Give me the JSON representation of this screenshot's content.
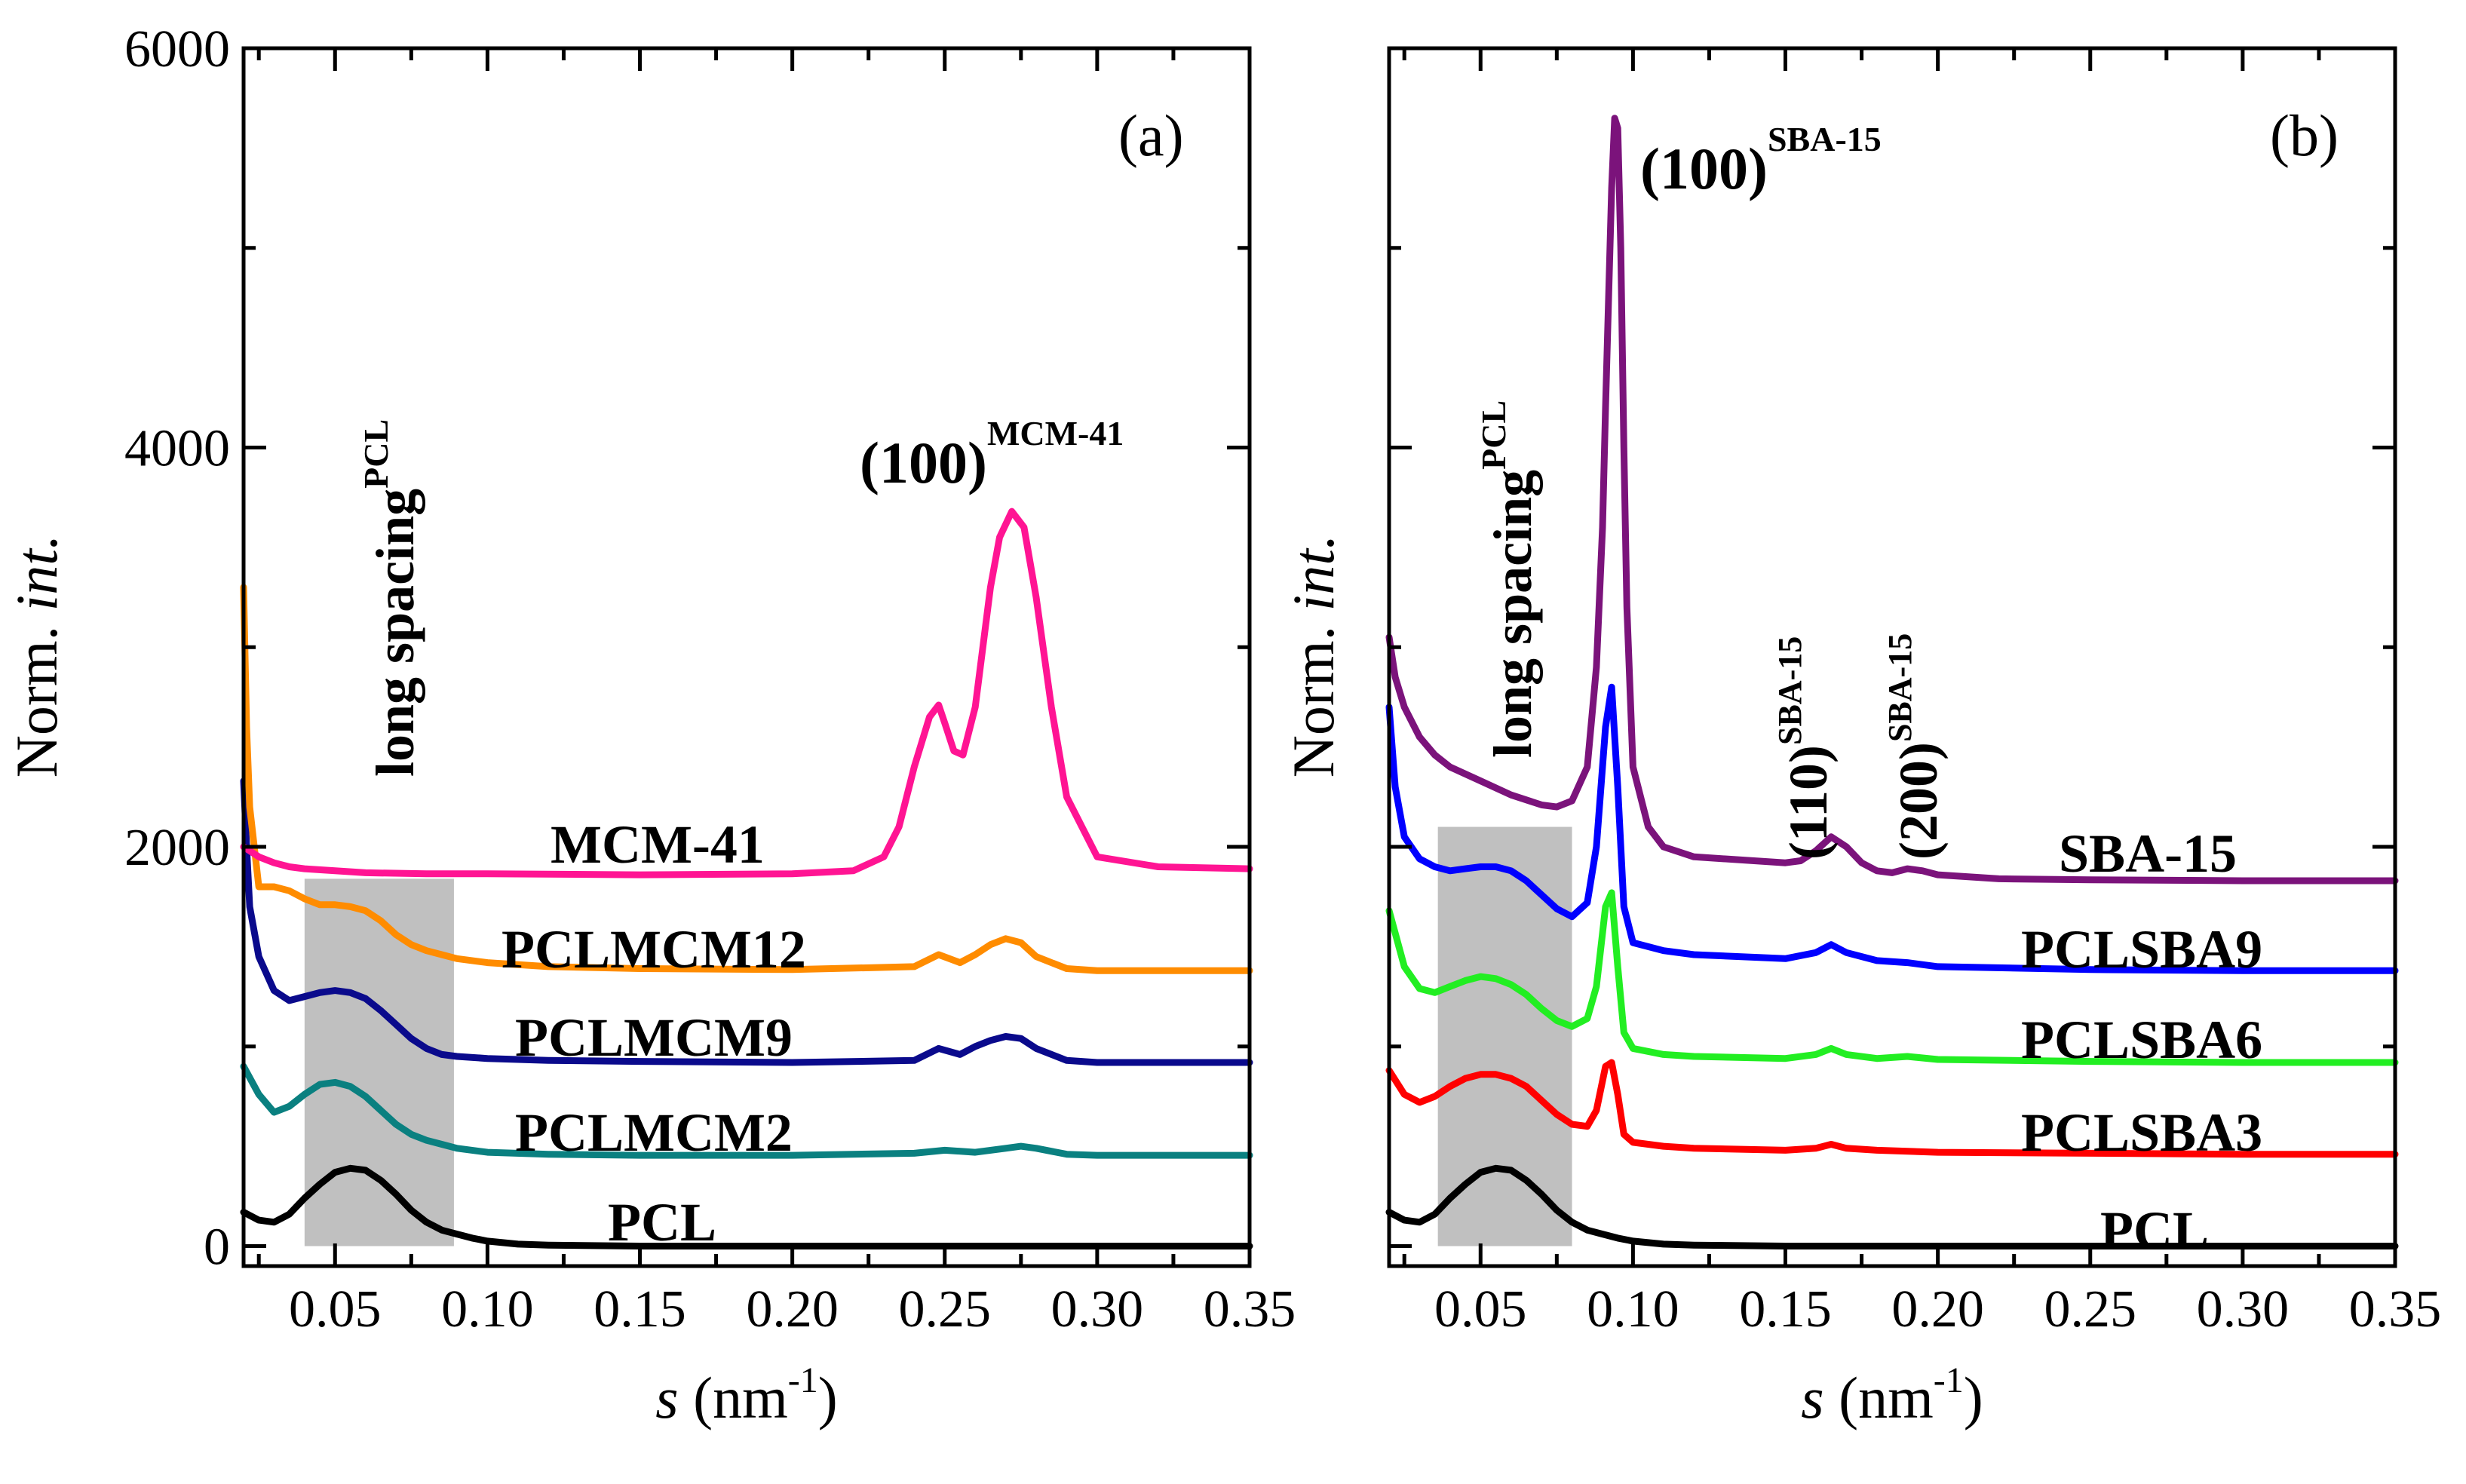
{
  "chart_data": [
    {
      "type": "line",
      "panel": "(a)",
      "xlabel": "s (nm-1)",
      "xlabel_parts": {
        "var": "s",
        "unit": "(nm",
        "exp": "-1",
        "close": ")"
      },
      "ylabel_parts": {
        "text": "Norm. ",
        "italic": "int."
      },
      "xlim": [
        0.02,
        0.35
      ],
      "ylim": [
        -100,
        6000
      ],
      "xticks": [
        0.05,
        0.1,
        0.15,
        0.2,
        0.25,
        0.3,
        0.35
      ],
      "xtick_labels": [
        "0.05",
        "0.10",
        "0.15",
        "0.20",
        "0.25",
        "0.30",
        "0.35"
      ],
      "yticks": [
        0,
        2000,
        4000,
        6000
      ],
      "ytick_labels": [
        "0",
        "2000",
        "4000",
        "6000"
      ],
      "shaded_band": {
        "x": [
          0.04,
          0.089
        ],
        "y": [
          0,
          1840
        ]
      },
      "annotations": [
        {
          "text": "long spacing",
          "sup": "PCL",
          "rotated": true
        },
        {
          "text": "(100)",
          "sup": "MCM-41"
        }
      ],
      "series": [
        {
          "name": "PCL",
          "color": "#000000",
          "x": [
            0.02,
            0.025,
            0.03,
            0.035,
            0.04,
            0.045,
            0.05,
            0.055,
            0.06,
            0.065,
            0.07,
            0.075,
            0.08,
            0.085,
            0.09,
            0.095,
            0.1,
            0.11,
            0.12,
            0.15,
            0.2,
            0.25,
            0.3,
            0.35
          ],
          "y": [
            170,
            130,
            120,
            160,
            240,
            310,
            370,
            390,
            380,
            330,
            260,
            180,
            120,
            80,
            60,
            40,
            25,
            10,
            5,
            0,
            0,
            0,
            0,
            0
          ]
        },
        {
          "name": "PCLMCM2",
          "color": "#0a8080",
          "x": [
            0.02,
            0.025,
            0.03,
            0.035,
            0.04,
            0.045,
            0.05,
            0.055,
            0.06,
            0.065,
            0.07,
            0.075,
            0.08,
            0.085,
            0.09,
            0.1,
            0.12,
            0.15,
            0.2,
            0.24,
            0.25,
            0.26,
            0.27,
            0.275,
            0.28,
            0.29,
            0.3,
            0.35
          ],
          "y": [
            900,
            760,
            670,
            700,
            760,
            810,
            820,
            800,
            750,
            680,
            610,
            560,
            530,
            510,
            490,
            470,
            460,
            455,
            455,
            465,
            480,
            470,
            490,
            500,
            490,
            460,
            455,
            455
          ]
        },
        {
          "name": "PCLMCM9",
          "color": "#0a0a8c",
          "x": [
            0.02,
            0.021,
            0.022,
            0.025,
            0.03,
            0.035,
            0.04,
            0.045,
            0.05,
            0.055,
            0.06,
            0.065,
            0.07,
            0.075,
            0.08,
            0.085,
            0.09,
            0.1,
            0.12,
            0.15,
            0.2,
            0.24,
            0.248,
            0.255,
            0.26,
            0.265,
            0.27,
            0.275,
            0.28,
            0.29,
            0.3,
            0.35
          ],
          "y": [
            2330,
            2000,
            1700,
            1450,
            1280,
            1230,
            1250,
            1270,
            1280,
            1270,
            1240,
            1180,
            1110,
            1040,
            990,
            960,
            950,
            940,
            930,
            925,
            920,
            930,
            990,
            960,
            1000,
            1030,
            1050,
            1040,
            990,
            930,
            920,
            920
          ]
        },
        {
          "name": "PCLMCM12",
          "color": "#ff8c00",
          "x": [
            0.02,
            0.021,
            0.022,
            0.025,
            0.03,
            0.035,
            0.04,
            0.045,
            0.05,
            0.055,
            0.06,
            0.065,
            0.07,
            0.075,
            0.08,
            0.085,
            0.09,
            0.1,
            0.12,
            0.15,
            0.2,
            0.24,
            0.248,
            0.255,
            0.26,
            0.265,
            0.27,
            0.275,
            0.28,
            0.29,
            0.3,
            0.35
          ],
          "y": [
            3300,
            2600,
            2200,
            1800,
            1800,
            1780,
            1740,
            1710,
            1710,
            1700,
            1680,
            1630,
            1560,
            1510,
            1480,
            1460,
            1440,
            1420,
            1400,
            1390,
            1385,
            1400,
            1460,
            1420,
            1460,
            1510,
            1540,
            1520,
            1450,
            1390,
            1380,
            1380
          ]
        },
        {
          "name": "MCM-41",
          "color": "#ff1493",
          "x": [
            0.02,
            0.025,
            0.03,
            0.035,
            0.04,
            0.05,
            0.06,
            0.08,
            0.1,
            0.15,
            0.2,
            0.22,
            0.23,
            0.235,
            0.24,
            0.245,
            0.248,
            0.25,
            0.253,
            0.256,
            0.26,
            0.265,
            0.268,
            0.272,
            0.276,
            0.28,
            0.285,
            0.29,
            0.3,
            0.32,
            0.35
          ],
          "y": [
            2000,
            1950,
            1920,
            1900,
            1890,
            1880,
            1870,
            1865,
            1865,
            1860,
            1865,
            1880,
            1950,
            2100,
            2400,
            2650,
            2710,
            2620,
            2480,
            2460,
            2700,
            3300,
            3550,
            3680,
            3600,
            3250,
            2700,
            2250,
            1950,
            1900,
            1890
          ]
        }
      ],
      "labels": [
        "MCM-41",
        "PCLMCM12",
        "PCLMCM9",
        "PCLMCM2",
        "PCL"
      ]
    },
    {
      "type": "line",
      "panel": "(b)",
      "xlabel": "s (nm-1)",
      "xlabel_parts": {
        "var": "s",
        "unit": "(nm",
        "exp": "-1",
        "close": ")"
      },
      "ylabel_parts": {
        "text": "Norm. ",
        "italic": "int."
      },
      "xlim": [
        0.02,
        0.35
      ],
      "ylim": [
        -100,
        6000
      ],
      "xticks": [
        0.05,
        0.1,
        0.15,
        0.2,
        0.25,
        0.3,
        0.35
      ],
      "xtick_labels": [
        "0.05",
        "0.10",
        "0.15",
        "0.20",
        "0.25",
        "0.30",
        "0.35"
      ],
      "yticks": [
        0,
        2000,
        4000,
        6000
      ],
      "shaded_band": {
        "x": [
          0.036,
          0.08
        ],
        "y": [
          0,
          2100
        ]
      },
      "annotations": [
        {
          "text": "long spacing",
          "sup": "PCL",
          "rotated": true
        },
        {
          "text": "(100)",
          "sup": "SBA-15"
        },
        {
          "text": "(110)",
          "sup": "SBA-15",
          "rotated": true
        },
        {
          "text": "(200)",
          "sup": "SBA-15",
          "rotated": true
        }
      ],
      "series": [
        {
          "name": "PCL",
          "color": "#000000",
          "x": [
            0.02,
            0.025,
            0.03,
            0.035,
            0.04,
            0.045,
            0.05,
            0.055,
            0.06,
            0.065,
            0.07,
            0.075,
            0.08,
            0.085,
            0.09,
            0.095,
            0.1,
            0.11,
            0.12,
            0.15,
            0.2,
            0.25,
            0.3,
            0.35
          ],
          "y": [
            170,
            130,
            120,
            160,
            240,
            310,
            370,
            390,
            380,
            330,
            260,
            180,
            120,
            80,
            60,
            40,
            25,
            10,
            5,
            0,
            0,
            0,
            0,
            0
          ]
        },
        {
          "name": "PCLSBA3",
          "color": "#ff0000",
          "x": [
            0.02,
            0.025,
            0.03,
            0.035,
            0.04,
            0.045,
            0.05,
            0.055,
            0.06,
            0.065,
            0.07,
            0.075,
            0.08,
            0.085,
            0.088,
            0.091,
            0.093,
            0.095,
            0.097,
            0.1,
            0.11,
            0.12,
            0.15,
            0.16,
            0.165,
            0.17,
            0.18,
            0.2,
            0.25,
            0.3,
            0.35
          ],
          "y": [
            880,
            760,
            720,
            750,
            800,
            840,
            860,
            860,
            840,
            800,
            730,
            660,
            610,
            600,
            680,
            900,
            920,
            760,
            560,
            520,
            500,
            490,
            480,
            490,
            510,
            490,
            480,
            470,
            465,
            460,
            460
          ]
        },
        {
          "name": "PCLSBA6",
          "color": "#22ee22",
          "x": [
            0.02,
            0.025,
            0.03,
            0.035,
            0.04,
            0.045,
            0.05,
            0.055,
            0.06,
            0.065,
            0.07,
            0.075,
            0.08,
            0.085,
            0.088,
            0.091,
            0.093,
            0.095,
            0.097,
            0.1,
            0.11,
            0.12,
            0.15,
            0.16,
            0.165,
            0.17,
            0.18,
            0.19,
            0.2,
            0.25,
            0.3,
            0.35
          ],
          "y": [
            1680,
            1400,
            1290,
            1270,
            1300,
            1330,
            1350,
            1340,
            1310,
            1260,
            1190,
            1130,
            1100,
            1140,
            1300,
            1700,
            1770,
            1400,
            1070,
            990,
            960,
            950,
            940,
            960,
            990,
            960,
            940,
            950,
            935,
            925,
            920,
            920
          ]
        },
        {
          "name": "PCLSBA9",
          "color": "#0000ff",
          "x": [
            0.02,
            0.022,
            0.025,
            0.03,
            0.035,
            0.04,
            0.045,
            0.05,
            0.055,
            0.06,
            0.065,
            0.07,
            0.075,
            0.08,
            0.085,
            0.088,
            0.091,
            0.093,
            0.095,
            0.097,
            0.1,
            0.11,
            0.12,
            0.15,
            0.16,
            0.165,
            0.17,
            0.18,
            0.19,
            0.2,
            0.25,
            0.3,
            0.35
          ],
          "y": [
            2700,
            2300,
            2050,
            1940,
            1900,
            1880,
            1890,
            1900,
            1900,
            1880,
            1830,
            1760,
            1690,
            1650,
            1720,
            2000,
            2600,
            2800,
            2300,
            1700,
            1520,
            1480,
            1460,
            1440,
            1470,
            1510,
            1470,
            1430,
            1420,
            1400,
            1385,
            1380,
            1380
          ]
        },
        {
          "name": "SBA-15",
          "color": "#7b137b",
          "x": [
            0.02,
            0.022,
            0.025,
            0.03,
            0.035,
            0.04,
            0.05,
            0.06,
            0.07,
            0.075,
            0.08,
            0.085,
            0.088,
            0.09,
            0.091,
            0.093,
            0.094,
            0.095,
            0.096,
            0.097,
            0.098,
            0.1,
            0.105,
            0.11,
            0.12,
            0.15,
            0.155,
            0.16,
            0.165,
            0.17,
            0.175,
            0.18,
            0.185,
            0.19,
            0.195,
            0.2,
            0.22,
            0.25,
            0.3,
            0.35
          ],
          "y": [
            3050,
            2850,
            2700,
            2550,
            2460,
            2400,
            2330,
            2260,
            2210,
            2200,
            2230,
            2400,
            2900,
            3600,
            4200,
            5300,
            5650,
            5600,
            5000,
            4000,
            3200,
            2400,
            2100,
            2000,
            1950,
            1920,
            1930,
            1980,
            2050,
            2000,
            1920,
            1880,
            1870,
            1890,
            1880,
            1860,
            1840,
            1835,
            1830,
            1830
          ]
        }
      ],
      "labels": [
        "SBA-15",
        "PCLSBA9",
        "PCLSBA6",
        "PCLSBA3",
        "PCL"
      ]
    }
  ]
}
